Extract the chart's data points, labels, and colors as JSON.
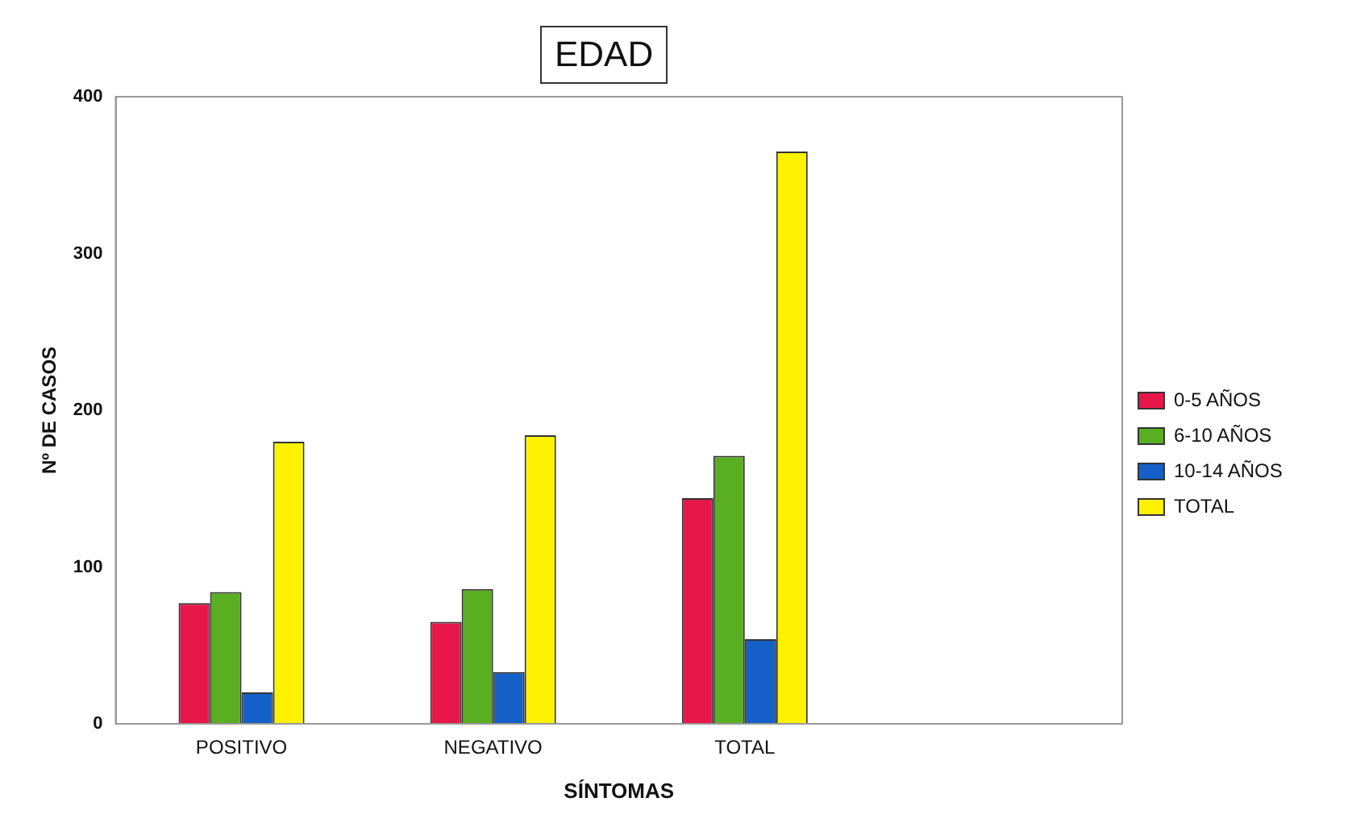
{
  "chart_data": {
    "type": "bar",
    "title": "EDAD",
    "xlabel": "SÍNTOMAS",
    "ylabel": "Nº DE CASOS",
    "categories": [
      "POSITIVO",
      "NEGATIVO",
      "TOTAL",
      null
    ],
    "series": [
      {
        "name": "0-5 AÑOS",
        "color": "#e8174a",
        "values": [
          77,
          65,
          144,
          null
        ]
      },
      {
        "name": "6-10 AÑOS",
        "color": "#5aae22",
        "values": [
          84,
          86,
          171,
          null
        ]
      },
      {
        "name": "10-14 AÑOS",
        "color": "#1460c8",
        "values": [
          20,
          33,
          54,
          null
        ]
      },
      {
        "name": "TOTAL",
        "color": "#fff200",
        "values": [
          180,
          184,
          365,
          null
        ]
      }
    ],
    "ylim": [
      0,
      400
    ],
    "yticks": [
      0,
      100,
      200,
      300,
      400
    ],
    "grid": false,
    "legend": "right"
  }
}
